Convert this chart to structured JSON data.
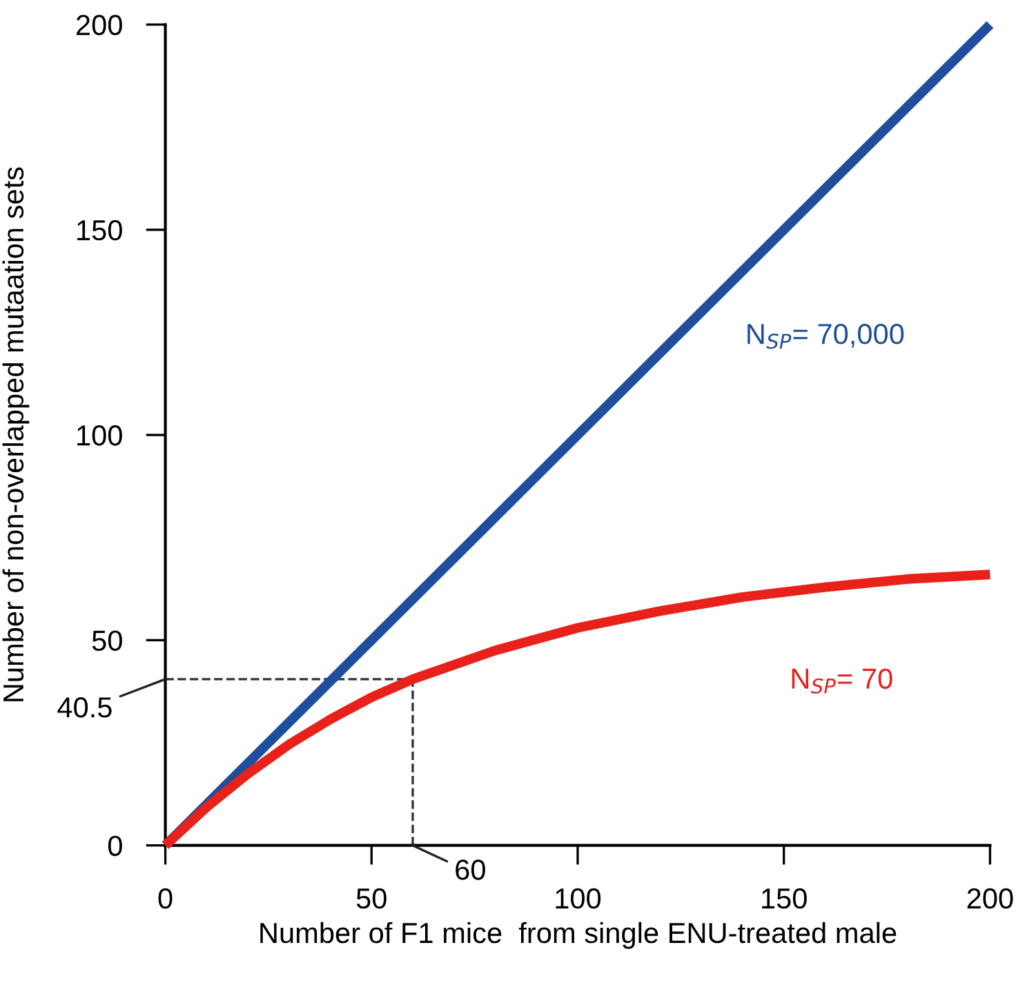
{
  "chart_data": {
    "type": "line",
    "xlabel": "Number of F1 mice  from single ENU-treated male",
    "ylabel": "Number of non-overlapped mutaation sets",
    "series": [
      {
        "name": "N$_{SP}$= 70,000",
        "color": "#1f4e9c",
        "x": [
          0,
          50,
          100,
          150,
          200
        ],
        "values": [
          0,
          50,
          100,
          150,
          200
        ]
      },
      {
        "name": "N$_{SP}$= 70",
        "color": "#e8221b",
        "x": [
          0,
          10,
          20,
          30,
          40,
          50,
          60,
          80,
          100,
          120,
          140,
          160,
          180,
          200
        ],
        "values": [
          0,
          9.3,
          17.4,
          24.6,
          30.7,
          36.1,
          40.5,
          47.5,
          53,
          57.1,
          60.5,
          62.9,
          64.9,
          66
        ]
      }
    ],
    "xlim": [
      0,
      200
    ],
    "ylim": [
      0,
      200
    ],
    "xticks": [
      0,
      50,
      100,
      150,
      200
    ],
    "yticks": [
      0,
      50,
      100,
      150,
      200
    ],
    "ref_lines": [
      {
        "axis": "y",
        "value": 40.5,
        "label": "40.5",
        "line_style": "dashed",
        "color": "#333333"
      },
      {
        "axis": "x",
        "value": 60,
        "label": "60",
        "line_style": "dashed",
        "color": "#333333"
      }
    ],
    "grid": false,
    "legend": false,
    "marker": "none",
    "line_style": "solid"
  }
}
